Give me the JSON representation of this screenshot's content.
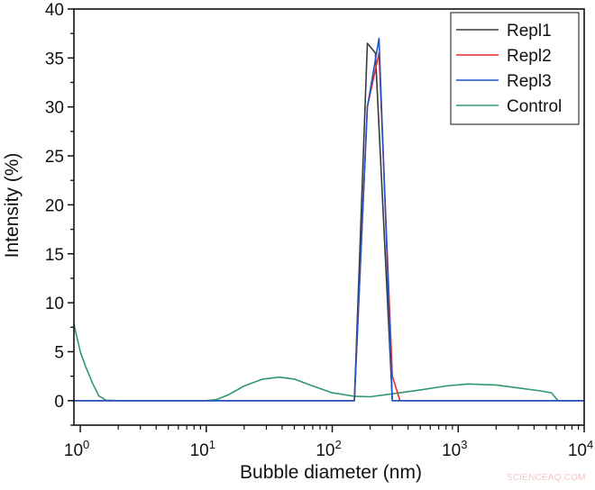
{
  "chart_data": {
    "type": "line",
    "title": "",
    "xlabel": "Bubble diameter (nm)",
    "ylabel": "Intensity (%)",
    "xscale": "log",
    "xlim": [
      0.89,
      10000
    ],
    "ylim": [
      -2.5,
      40
    ],
    "x_ticks": [
      1,
      10,
      100,
      1000,
      10000
    ],
    "x_tick_labels": [
      [
        "10",
        "0"
      ],
      [
        "10",
        "1"
      ],
      [
        "10",
        "2"
      ],
      [
        "10",
        "3"
      ],
      [
        "10",
        "4"
      ]
    ],
    "y_ticks": [
      0,
      5,
      10,
      15,
      20,
      25,
      30,
      35,
      40
    ],
    "y_tick_labels": [
      "0",
      "5",
      "10",
      "15",
      "20",
      "25",
      "30",
      "35",
      "40"
    ],
    "grid": false,
    "legend_position": "upper right",
    "series": [
      {
        "name": "Repl1",
        "color": "#3a3a3a",
        "x": [
          0.89,
          150,
          190,
          220,
          300,
          10000
        ],
        "y": [
          0,
          0,
          36.5,
          35.5,
          0,
          0
        ]
      },
      {
        "name": "Repl2",
        "color": "#e03030",
        "x": [
          0.89,
          150,
          190,
          235,
          300,
          345,
          10000
        ],
        "y": [
          0,
          0,
          30,
          35.5,
          2.5,
          0,
          0
        ]
      },
      {
        "name": "Repl3",
        "color": "#2255c4",
        "x": [
          0.89,
          150,
          190,
          235,
          300,
          10000
        ],
        "y": [
          0,
          0,
          30,
          37,
          0,
          0
        ]
      },
      {
        "name": "Control",
        "color": "#2e9a6a",
        "x": [
          0.89,
          1.0,
          1.1,
          1.25,
          1.4,
          1.6,
          2,
          5,
          10,
          12,
          15,
          20,
          28,
          38,
          50,
          70,
          100,
          150,
          200,
          300,
          500,
          800,
          1200,
          2000,
          3000,
          4500,
          5500,
          6200,
          10000
        ],
        "y": [
          7.8,
          5,
          3.5,
          1.8,
          0.5,
          0.05,
          0,
          0,
          0,
          0.1,
          0.6,
          1.5,
          2.2,
          2.4,
          2.2,
          1.5,
          0.8,
          0.45,
          0.4,
          0.7,
          1.1,
          1.5,
          1.7,
          1.6,
          1.3,
          1.0,
          0.8,
          0,
          0
        ]
      }
    ]
  },
  "watermark": "SCIENCEAQ.COM"
}
